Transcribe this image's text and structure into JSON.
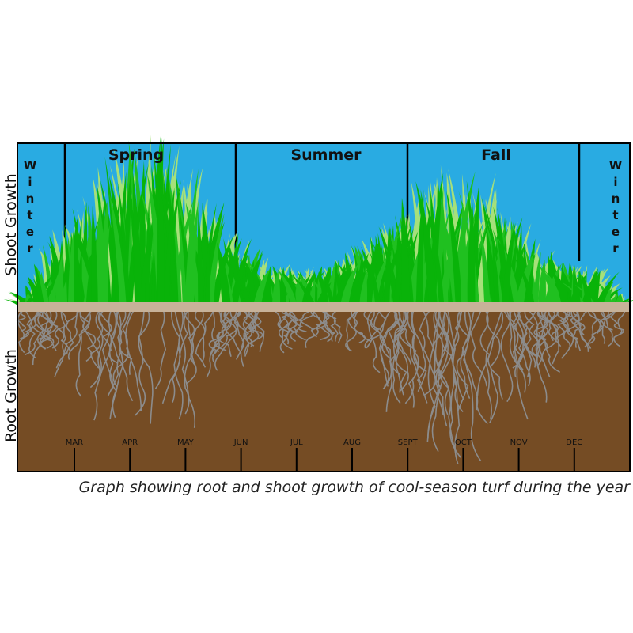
{
  "labels": {
    "shoot_growth": "Shoot Growth",
    "root_growth": "Root Growth"
  },
  "seasons": [
    "Winter",
    "Spring",
    "Summer",
    "Fall",
    "Winter"
  ],
  "months": [
    "MAR",
    "APR",
    "MAY",
    "JUN",
    "JUL",
    "AUG",
    "SEPT",
    "OCT",
    "NOV",
    "DEC"
  ],
  "caption": "Graph showing root and shoot growth of cool-season turf during the year"
}
